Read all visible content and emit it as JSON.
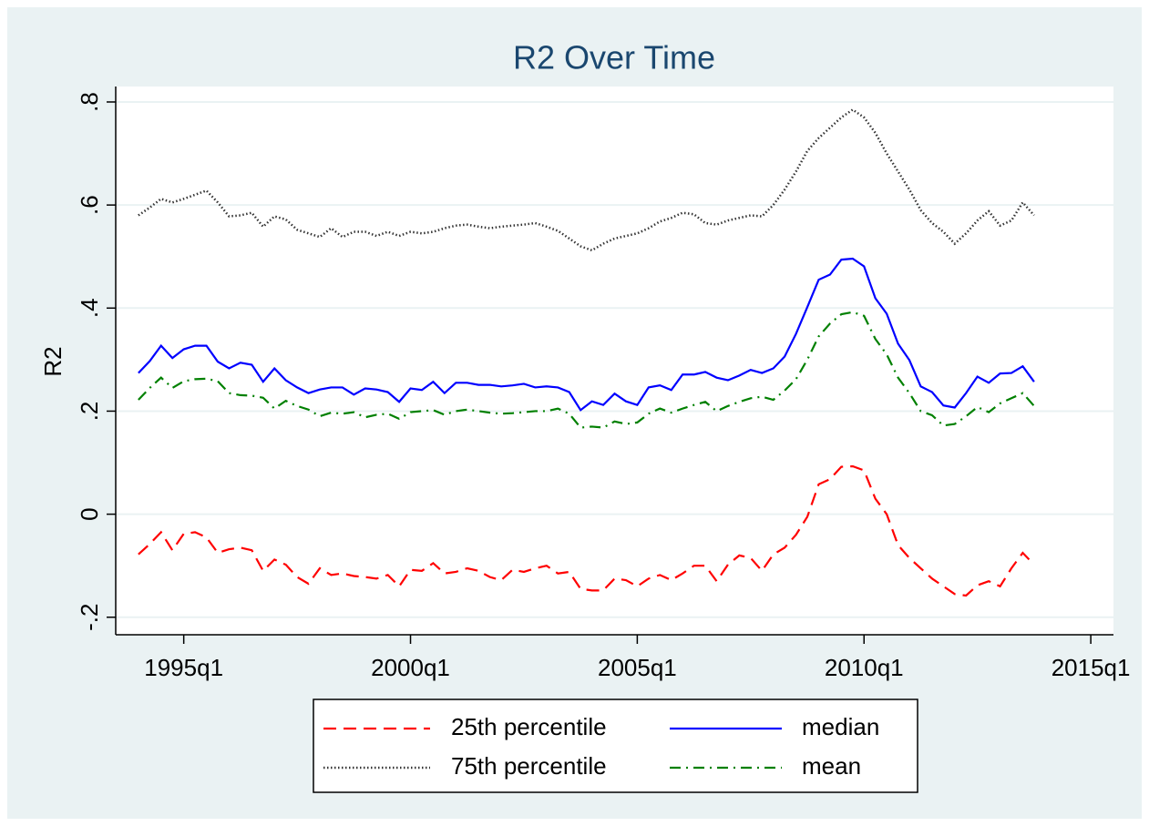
{
  "chart_data": {
    "type": "line",
    "title": "R2 Over Time",
    "y_label": "R2",
    "x": [
      "1994q1",
      "1994q2",
      "1994q3",
      "1994q4",
      "1995q1",
      "1995q2",
      "1995q3",
      "1995q4",
      "1996q1",
      "1996q2",
      "1996q3",
      "1996q4",
      "1997q1",
      "1997q2",
      "1997q3",
      "1997q4",
      "1998q1",
      "1998q2",
      "1998q3",
      "1998q4",
      "1999q1",
      "1999q2",
      "1999q3",
      "1999q4",
      "2000q1",
      "2000q2",
      "2000q3",
      "2000q4",
      "2001q1",
      "2001q2",
      "2001q3",
      "2001q4",
      "2002q1",
      "2002q2",
      "2002q3",
      "2002q4",
      "2003q1",
      "2003q2",
      "2003q3",
      "2003q4",
      "2004q1",
      "2004q2",
      "2004q3",
      "2004q4",
      "2005q1",
      "2005q2",
      "2005q3",
      "2005q4",
      "2006q1",
      "2006q2",
      "2006q3",
      "2006q4",
      "2007q1",
      "2007q2",
      "2007q3",
      "2007q4",
      "2008q1",
      "2008q2",
      "2008q3",
      "2008q4",
      "2009q1",
      "2009q2",
      "2009q3",
      "2009q4",
      "2010q1",
      "2010q2",
      "2010q3",
      "2010q4",
      "2011q1",
      "2011q2",
      "2011q3",
      "2011q4",
      "2012q1",
      "2012q2",
      "2012q3",
      "2012q4",
      "2013q1",
      "2013q2",
      "2013q3",
      "2013q4"
    ],
    "xlim": [
      "1993q3",
      "2015q3"
    ],
    "xticks": [
      "1995q1",
      "2000q1",
      "2005q1",
      "2010q1",
      "2015q1"
    ],
    "ylim": [
      -0.234,
      0.83
    ],
    "yticks": [
      {
        "value": -0.2,
        "label": "-.2"
      },
      0,
      {
        "value": 0.2,
        "label": ".2"
      },
      {
        "value": 0.4,
        "label": ".4"
      },
      {
        "value": 0.6,
        "label": ".6"
      },
      {
        "value": 0.8,
        "label": ".8"
      }
    ],
    "grid": true,
    "legend": "bottom",
    "series": [
      {
        "name": "25th percentile",
        "color": "#ff0000",
        "dash": "dashed",
        "values": [
          -0.078,
          -0.058,
          -0.035,
          -0.07,
          -0.038,
          -0.035,
          -0.045,
          -0.075,
          -0.068,
          -0.065,
          -0.07,
          -0.11,
          -0.088,
          -0.098,
          -0.122,
          -0.135,
          -0.105,
          -0.118,
          -0.115,
          -0.12,
          -0.122,
          -0.125,
          -0.118,
          -0.14,
          -0.108,
          -0.11,
          -0.095,
          -0.115,
          -0.112,
          -0.105,
          -0.11,
          -0.122,
          -0.128,
          -0.108,
          -0.112,
          -0.105,
          -0.1,
          -0.115,
          -0.112,
          -0.145,
          -0.148,
          -0.148,
          -0.125,
          -0.128,
          -0.14,
          -0.125,
          -0.118,
          -0.128,
          -0.115,
          -0.1,
          -0.1,
          -0.13,
          -0.098,
          -0.08,
          -0.085,
          -0.11,
          -0.078,
          -0.065,
          -0.04,
          -0.005,
          0.058,
          0.068,
          0.092,
          0.093,
          0.085,
          0.03,
          0.0,
          -0.06,
          -0.085,
          -0.105,
          -0.125,
          -0.14,
          -0.155,
          -0.158,
          -0.138,
          -0.13,
          -0.14,
          -0.105,
          -0.075,
          -0.098
        ]
      },
      {
        "name": "median",
        "color": "#0000ff",
        "dash": "solid",
        "values": [
          0.274,
          0.297,
          0.327,
          0.303,
          0.32,
          0.327,
          0.327,
          0.296,
          0.283,
          0.294,
          0.29,
          0.257,
          0.283,
          0.26,
          0.246,
          0.235,
          0.242,
          0.246,
          0.246,
          0.232,
          0.244,
          0.242,
          0.237,
          0.218,
          0.244,
          0.241,
          0.257,
          0.235,
          0.255,
          0.255,
          0.251,
          0.251,
          0.248,
          0.25,
          0.253,
          0.246,
          0.248,
          0.246,
          0.237,
          0.202,
          0.219,
          0.212,
          0.234,
          0.219,
          0.212,
          0.246,
          0.25,
          0.241,
          0.271,
          0.271,
          0.276,
          0.265,
          0.26,
          0.269,
          0.28,
          0.274,
          0.283,
          0.306,
          0.35,
          0.402,
          0.455,
          0.465,
          0.494,
          0.496,
          0.481,
          0.419,
          0.389,
          0.331,
          0.299,
          0.248,
          0.237,
          0.211,
          0.207,
          0.235,
          0.267,
          0.255,
          0.273,
          0.274,
          0.287,
          0.257
        ]
      },
      {
        "name": "75th percentile",
        "color": "#333333",
        "dash": "dotted",
        "values": [
          0.58,
          0.595,
          0.612,
          0.605,
          0.612,
          0.62,
          0.628,
          0.605,
          0.578,
          0.58,
          0.585,
          0.558,
          0.578,
          0.572,
          0.552,
          0.545,
          0.538,
          0.555,
          0.538,
          0.548,
          0.548,
          0.54,
          0.548,
          0.54,
          0.548,
          0.545,
          0.548,
          0.555,
          0.56,
          0.562,
          0.558,
          0.555,
          0.558,
          0.56,
          0.562,
          0.565,
          0.558,
          0.55,
          0.535,
          0.52,
          0.512,
          0.525,
          0.535,
          0.54,
          0.545,
          0.555,
          0.568,
          0.575,
          0.585,
          0.582,
          0.565,
          0.562,
          0.57,
          0.575,
          0.58,
          0.578,
          0.6,
          0.63,
          0.665,
          0.705,
          0.73,
          0.75,
          0.77,
          0.785,
          0.77,
          0.74,
          0.7,
          0.665,
          0.63,
          0.59,
          0.565,
          0.548,
          0.525,
          0.545,
          0.57,
          0.588,
          0.56,
          0.57,
          0.605,
          0.58
        ]
      },
      {
        "name": "mean",
        "color": "#008000",
        "dash": "dashdot",
        "values": [
          0.222,
          0.245,
          0.265,
          0.245,
          0.258,
          0.262,
          0.263,
          0.258,
          0.235,
          0.231,
          0.23,
          0.226,
          0.205,
          0.22,
          0.21,
          0.203,
          0.19,
          0.197,
          0.195,
          0.198,
          0.188,
          0.193,
          0.195,
          0.185,
          0.198,
          0.2,
          0.202,
          0.193,
          0.2,
          0.203,
          0.2,
          0.197,
          0.195,
          0.196,
          0.198,
          0.2,
          0.2,
          0.205,
          0.195,
          0.168,
          0.17,
          0.168,
          0.18,
          0.175,
          0.178,
          0.195,
          0.205,
          0.197,
          0.205,
          0.212,
          0.218,
          0.2,
          0.21,
          0.218,
          0.225,
          0.228,
          0.222,
          0.24,
          0.262,
          0.3,
          0.345,
          0.37,
          0.388,
          0.392,
          0.385,
          0.34,
          0.31,
          0.265,
          0.235,
          0.2,
          0.192,
          0.172,
          0.175,
          0.19,
          0.208,
          0.198,
          0.215,
          0.225,
          0.235,
          0.21
        ]
      }
    ]
  }
}
